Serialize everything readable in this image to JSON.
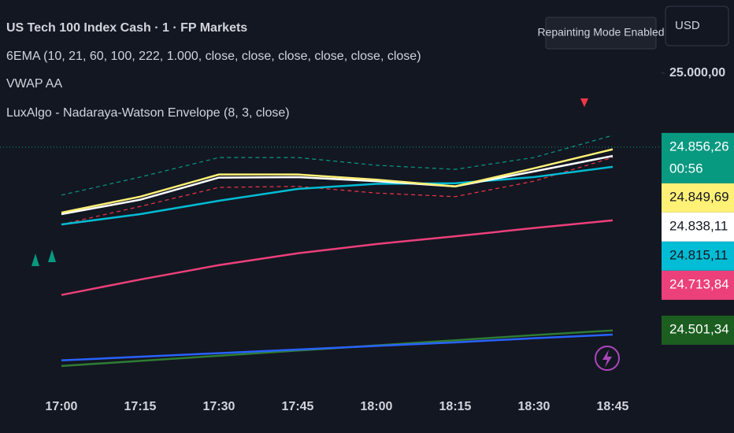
{
  "header": {
    "title": "US Tech 100 Index Cash · 1 · FP Markets",
    "indicators": [
      "6EMA (10, 21, 60, 100, 222, 1.000, close, close, close, close, close, close)",
      "VWAP AA",
      "LuxAlgo - Nadaraya-Watson Envelope (8, 3, close)"
    ]
  },
  "badge": "Repainting Mode Enabled",
  "currency": "USD",
  "chart_data": {
    "type": "line",
    "categories": [
      "17:00",
      "17:15",
      "17:30",
      "17:45",
      "18:00",
      "18:15",
      "18:30",
      "18:45"
    ],
    "ylim": [
      24385,
      25142
    ],
    "yticks": [
      {
        "value": 25000,
        "label": "25.000,00"
      }
    ],
    "series": [
      {
        "color": "#089981",
        "dash": true,
        "values": [
          24763,
          24798,
          24836,
          24836,
          24821,
          24813,
          24836,
          24879
        ]
      },
      {
        "color": "#f23645",
        "dash": true,
        "values": [
          24706,
          24741,
          24778,
          24780,
          24767,
          24760,
          24790,
          24836
        ]
      },
      {
        "color": "#2e7d32",
        "values": [
          24431,
          24441,
          24451,
          24461,
          24471,
          24481,
          24491,
          24500
        ]
      },
      {
        "color": "#2962ff",
        "values": [
          24442,
          24449,
          24456,
          24463,
          24470,
          24477,
          24485,
          24492
        ]
      },
      {
        "color": "#ec407a",
        "values": [
          24569,
          24599,
          24627,
          24650,
          24668,
          24683,
          24699,
          24714
        ]
      },
      {
        "color": "#00bcd4",
        "values": [
          24706,
          24726,
          24752,
          24775,
          24785,
          24786,
          24798,
          24818
        ]
      },
      {
        "color": "#ffffff",
        "values": [
          24726,
          24754,
          24797,
          24798,
          24790,
          24780,
          24809,
          24839
        ]
      },
      {
        "color": "#fff176",
        "values": [
          24729,
          24760,
          24803,
          24803,
          24793,
          24780,
          24815,
          24852
        ]
      }
    ],
    "price_tags": [
      {
        "value": 24856.26,
        "label": "24.856,26",
        "countdown": "00:56",
        "color": "#089981",
        "text_color": "#ffffff"
      },
      {
        "value": 24849.69,
        "label": "24.849,69",
        "color": "#fff176",
        "text_color": "#131722"
      },
      {
        "value": 24838.11,
        "label": "24.838,11",
        "color": "#ffffff",
        "text_color": "#131722"
      },
      {
        "value": 24815.11,
        "label": "24.815,11",
        "color": "#00bcd4",
        "text_color": "#131722"
      },
      {
        "value": 24713.84,
        "label": "24.713,84",
        "color": "#ec407a",
        "text_color": "#ffffff"
      },
      {
        "value": 24501.34,
        "label": "24.501,34",
        "color": "#1b5e20",
        "text_color": "#ffffff"
      }
    ]
  }
}
